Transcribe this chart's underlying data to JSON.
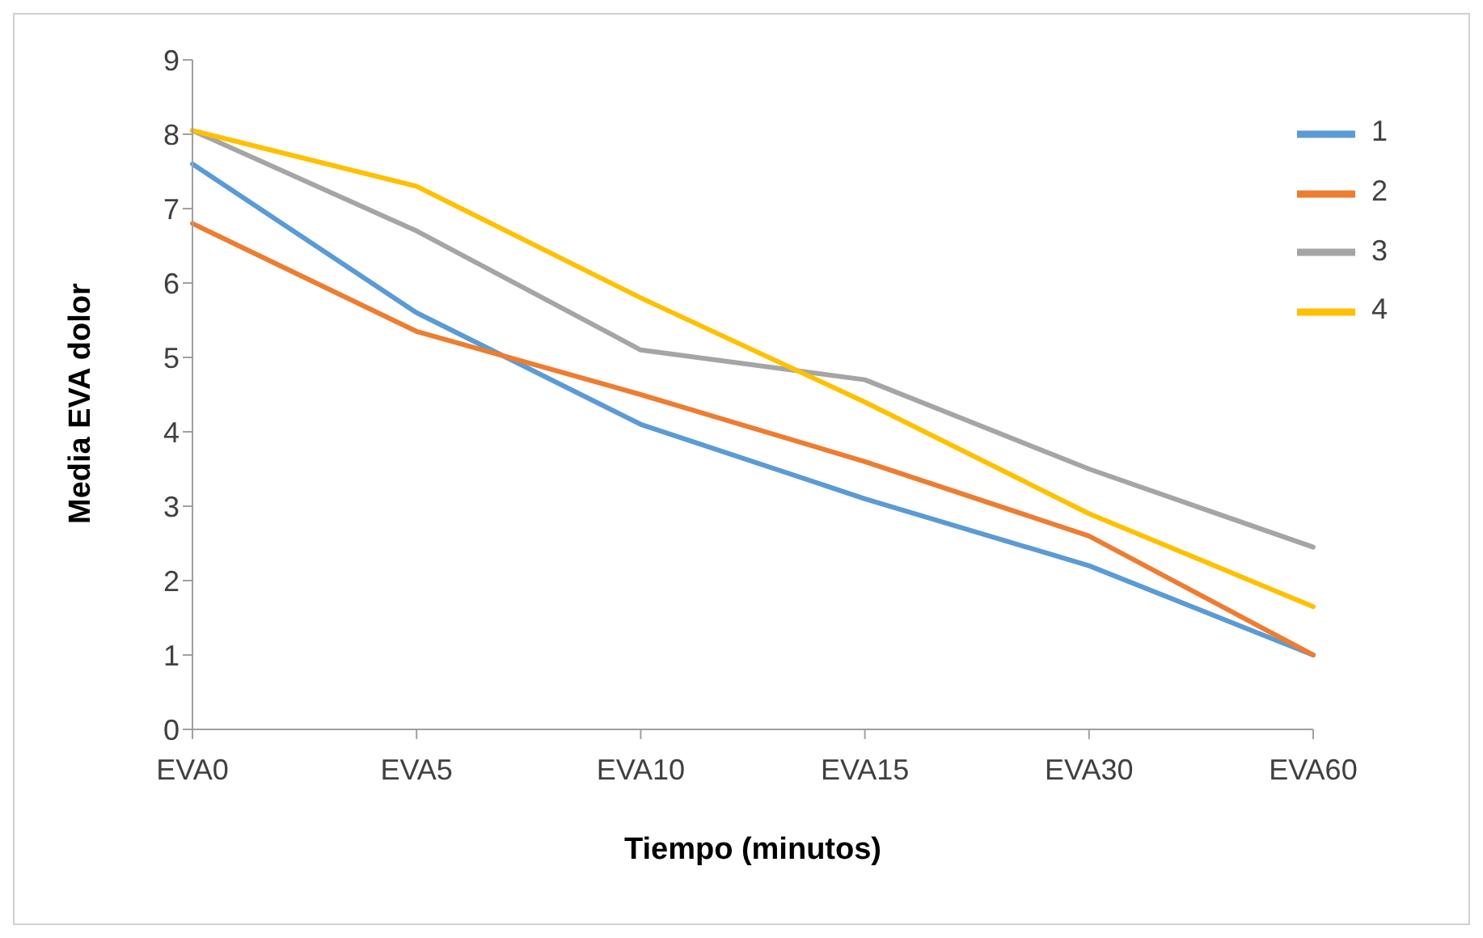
{
  "chart_data": {
    "type": "line",
    "xlabel": "Tiempo (minutos)",
    "ylabel": "Media EVA dolor",
    "categories": [
      "EVA0",
      "EVA5",
      "EVA10",
      "EVA15",
      "EVA30",
      "EVA60"
    ],
    "series": [
      {
        "name": "1",
        "color": "#5b9bd5",
        "values": [
          7.6,
          5.6,
          4.1,
          3.1,
          2.2,
          1.0
        ]
      },
      {
        "name": "2",
        "color": "#ed7d31",
        "values": [
          6.8,
          5.35,
          4.5,
          3.6,
          2.6,
          1.0
        ]
      },
      {
        "name": "3",
        "color": "#a5a5a5",
        "values": [
          8.05,
          6.7,
          5.1,
          4.7,
          3.5,
          2.45
        ]
      },
      {
        "name": "4",
        "color": "#ffc000",
        "values": [
          8.05,
          7.3,
          5.8,
          4.4,
          2.9,
          1.65
        ]
      }
    ],
    "ylim": [
      0,
      9
    ],
    "yticks": [
      0,
      1,
      2,
      3,
      4,
      5,
      6,
      7,
      8,
      9
    ],
    "grid": false,
    "legend": "top right",
    "marker": "none",
    "line_style": "solid"
  }
}
